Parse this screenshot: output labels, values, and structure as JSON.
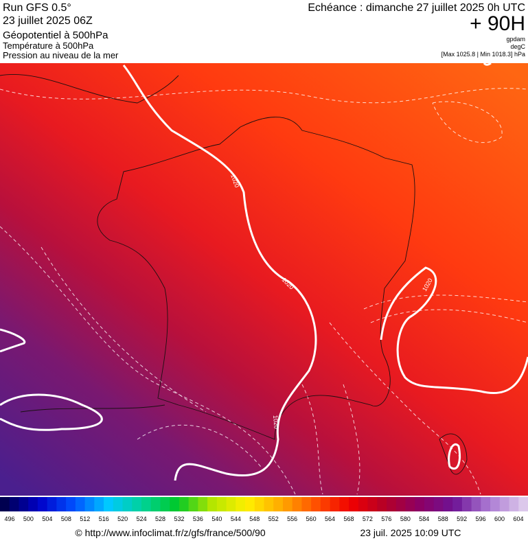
{
  "header": {
    "run": "Run GFS 0.5°",
    "date": "23 juillet 2025 06Z",
    "field1": "Géopotentiel à 500hPa",
    "field2": "Température à 500hPa",
    "field3": "Pression au niveau de la mer",
    "echeance": "Echéance : dimanche 27 juillet 2025 0h UTC",
    "lead": "+ 90H",
    "unit1": "gpdam",
    "unit2": "degC",
    "range": "[Max 1025.8 | Min 1018.3] hPa"
  },
  "map": {
    "contour_labels": [
      "1020",
      "1020",
      "1020",
      "1020"
    ]
  },
  "colorbar": {
    "labels": [
      496,
      500,
      504,
      508,
      512,
      516,
      520,
      524,
      528,
      532,
      536,
      540,
      544,
      548,
      552,
      556,
      560,
      564,
      568,
      572,
      576,
      580,
      584,
      588,
      592,
      596,
      600,
      604
    ]
  },
  "footer": {
    "source": "© http://www.infoclimat.fr/z/gfs/france/500/90",
    "timestamp": "23 juil. 2025 10:09 UTC"
  }
}
